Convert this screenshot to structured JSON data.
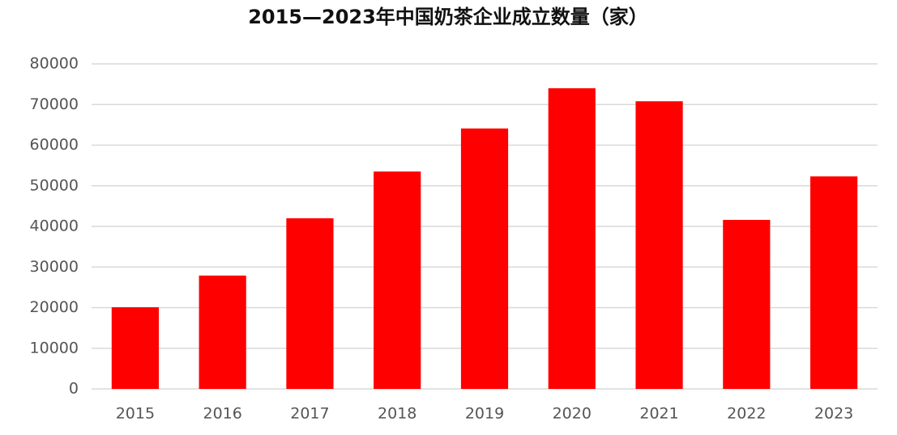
{
  "chart_data": {
    "type": "bar",
    "title": "2015—2023年中国奶茶企业成立数量（家）",
    "categories": [
      "2015",
      "2016",
      "2017",
      "2018",
      "2019",
      "2020",
      "2021",
      "2022",
      "2023"
    ],
    "values": [
      20100,
      27900,
      42000,
      53500,
      64100,
      74000,
      70800,
      41600,
      52300
    ],
    "color": "#ff0000",
    "ylim": [
      0,
      80000
    ],
    "yticks": [
      0,
      10000,
      20000,
      30000,
      40000,
      50000,
      60000,
      70000,
      80000
    ],
    "grid": true
  }
}
